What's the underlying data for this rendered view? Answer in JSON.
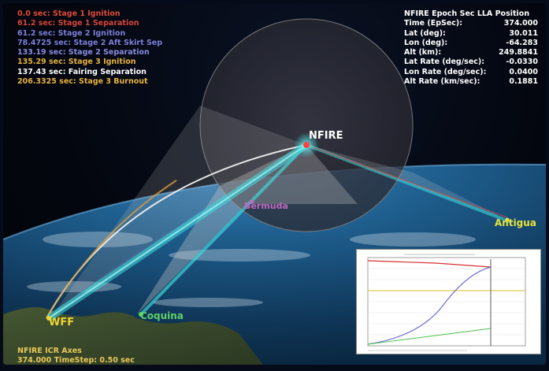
{
  "events": [
    {
      "text": "0.0 sec: Stage 1 Ignition",
      "color": "#e04a3a"
    },
    {
      "text": "61.2 sec: Stage 1 Separation",
      "color": "#d8443a"
    },
    {
      "text": "61.2 sec: Stage 2 Ignition",
      "color": "#7b7fd8"
    },
    {
      "text": "78.4725 sec: Stage 2 Aft Skirt Sep",
      "color": "#7b7fd8"
    },
    {
      "text": "133.19 sec: Stage 2 Separation",
      "color": "#8a8ae0"
    },
    {
      "text": "135.29 sec: Stage 3 Ignition",
      "color": "#e7b23c"
    },
    {
      "text": "137.43 sec: Fairing Separation",
      "color": "#ffffff"
    },
    {
      "text": "206.3325 sec: Stage 3 Burnout",
      "color": "#e7b23c"
    }
  ],
  "epoch": {
    "title": "NFIRE Epoch Sec LLA Position",
    "rows": [
      {
        "label": "Time (EpSec):",
        "value": "374.000"
      },
      {
        "label": "Lat (deg):",
        "value": "30.011"
      },
      {
        "label": "Lon (deg):",
        "value": "-64.283"
      },
      {
        "label": "Alt (km):",
        "value": "249.8841"
      },
      {
        "label": "Lat Rate (deg/sec):",
        "value": "-0.0330"
      },
      {
        "label": "Lon Rate (deg/sec):",
        "value": "0.0400"
      },
      {
        "label": "Alt Rate (km/sec):",
        "value": "0.1881"
      }
    ]
  },
  "labels": {
    "nfire": "NFIRE",
    "bermuda": "Bermuda",
    "antigua": "Antigua",
    "wff": "WFF",
    "coquina": "Coquina"
  },
  "axes_info": {
    "line1": "NFIRE ICR Axes",
    "line2": "374.000 TimeStep: 0.50 sec"
  },
  "colors": {
    "earth": "#1f5f8f",
    "beam": "#3fe0e0",
    "sensor_cone": "#c8c8c8",
    "trajectory": "#e8e8e8"
  }
}
